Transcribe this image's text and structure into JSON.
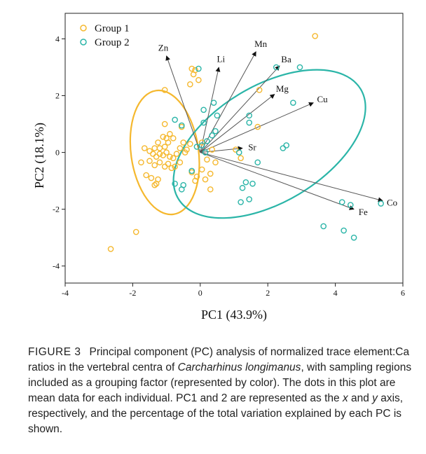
{
  "chart_data": {
    "type": "scatter",
    "xlabel": "PC1 (43.9%)",
    "ylabel": "PC2 (18.1%)",
    "xlim": [
      -4,
      6
    ],
    "ylim": [
      -4.6,
      4.9
    ],
    "x_ticks": [
      "-4",
      "-2",
      "0",
      "2",
      "4",
      "6"
    ],
    "y_ticks": [
      "4",
      "2",
      "0",
      "-2",
      "-4"
    ],
    "legend_position": "top-left",
    "grid": false,
    "series": [
      {
        "name": "Group 1",
        "color": "#f5b82e",
        "points": [
          [
            -2.65,
            -3.4
          ],
          [
            -1.9,
            -2.8
          ],
          [
            -1.05,
            2.2
          ],
          [
            -0.15,
            2.9
          ],
          [
            -0.2,
            2.75
          ],
          [
            -0.25,
            2.95
          ],
          [
            -0.3,
            2.4
          ],
          [
            -0.05,
            2.55
          ],
          [
            0.3,
            -1.3
          ],
          [
            -1.05,
            1.0
          ],
          [
            -0.55,
            0.9
          ],
          [
            -1.0,
            0.5
          ],
          [
            -0.9,
            0.65
          ],
          [
            -1.1,
            0.55
          ],
          [
            -1.25,
            0.35
          ],
          [
            -1.35,
            0.15
          ],
          [
            -1.2,
            0.15
          ],
          [
            -1.05,
            0.2
          ],
          [
            -0.95,
            0.35
          ],
          [
            -0.8,
            0.5
          ],
          [
            -0.6,
            0.15
          ],
          [
            -0.5,
            0.35
          ],
          [
            -0.4,
            0.1
          ],
          [
            -0.3,
            0.3
          ],
          [
            -1.65,
            0.15
          ],
          [
            -1.5,
            0.05
          ],
          [
            -1.4,
            -0.05
          ],
          [
            -1.3,
            -0.15
          ],
          [
            -1.2,
            -0.05
          ],
          [
            -1.1,
            -0.1
          ],
          [
            -1.0,
            0.0
          ],
          [
            -0.9,
            -0.15
          ],
          [
            -0.8,
            -0.2
          ],
          [
            -0.7,
            -0.05
          ],
          [
            -0.6,
            -0.35
          ],
          [
            -1.75,
            -0.35
          ],
          [
            -1.5,
            -0.3
          ],
          [
            -1.35,
            -0.45
          ],
          [
            -1.2,
            -0.35
          ],
          [
            -1.05,
            -0.5
          ],
          [
            -0.95,
            -0.4
          ],
          [
            -0.85,
            -0.55
          ],
          [
            -0.75,
            -0.5
          ],
          [
            -1.6,
            -0.8
          ],
          [
            -1.45,
            -0.9
          ],
          [
            -1.3,
            -1.1
          ],
          [
            -1.25,
            -0.95
          ],
          [
            -1.35,
            -1.15
          ],
          [
            -0.25,
            -0.7
          ],
          [
            -0.1,
            -0.85
          ],
          [
            0.05,
            -0.6
          ],
          [
            0.15,
            -0.95
          ],
          [
            0.3,
            -0.75
          ],
          [
            0.45,
            -0.35
          ],
          [
            0.05,
            0.35
          ],
          [
            0.35,
            0.1
          ],
          [
            -0.45,
            0.0
          ],
          [
            0.2,
            -0.25
          ],
          [
            -0.15,
            -1.0
          ],
          [
            1.2,
            -0.2
          ],
          [
            1.05,
            0.1
          ],
          [
            1.7,
            0.9
          ],
          [
            1.75,
            2.2
          ],
          [
            3.4,
            4.1
          ]
        ]
      },
      {
        "name": "Group 2",
        "color": "#2bb5a8",
        "points": [
          [
            -0.05,
            2.95
          ],
          [
            2.25,
            3.0
          ],
          [
            2.95,
            3.0
          ],
          [
            0.4,
            1.75
          ],
          [
            0.1,
            1.5
          ],
          [
            0.5,
            1.3
          ],
          [
            0.1,
            1.05
          ],
          [
            -0.75,
            1.15
          ],
          [
            -0.55,
            0.95
          ],
          [
            0.35,
            0.6
          ],
          [
            0.45,
            0.75
          ],
          [
            0.2,
            0.4
          ],
          [
            0.05,
            0.25
          ],
          [
            -0.1,
            0.2
          ],
          [
            0.15,
            0.0
          ],
          [
            1.45,
            1.3
          ],
          [
            1.45,
            1.05
          ],
          [
            2.75,
            1.75
          ],
          [
            1.15,
            0.0
          ],
          [
            1.7,
            -0.35
          ],
          [
            -0.25,
            -0.65
          ],
          [
            -0.75,
            -1.1
          ],
          [
            -0.55,
            -1.3
          ],
          [
            -0.5,
            -1.15
          ],
          [
            1.35,
            -1.05
          ],
          [
            1.55,
            -1.1
          ],
          [
            1.25,
            -1.25
          ],
          [
            1.2,
            -1.75
          ],
          [
            1.45,
            -1.65
          ],
          [
            3.65,
            -2.6
          ],
          [
            4.25,
            -2.75
          ],
          [
            4.45,
            -1.85
          ],
          [
            4.2,
            -1.75
          ],
          [
            4.55,
            -3.0
          ],
          [
            5.35,
            -1.8
          ],
          [
            2.45,
            0.15
          ],
          [
            2.55,
            0.25
          ]
        ]
      }
    ],
    "ellipses": [
      {
        "series": "Group 1",
        "cx": -1.05,
        "cy": 0.0,
        "rx": 1.0,
        "ry": 2.2,
        "angle_deg": -8
      },
      {
        "series": "Group 2",
        "cx": 2.05,
        "cy": 0.3,
        "rx": 3.15,
        "ry": 2.05,
        "angle_deg": -31
      }
    ],
    "vectors": [
      {
        "label": "Zn",
        "x": -1.0,
        "y": 3.4
      },
      {
        "label": "Li",
        "x": 0.55,
        "y": 3.0
      },
      {
        "label": "Mn",
        "x": 1.65,
        "y": 3.55
      },
      {
        "label": "Ba",
        "x": 2.35,
        "y": 3.05
      },
      {
        "label": "Mg",
        "x": 2.2,
        "y": 2.05
      },
      {
        "label": "Cu",
        "x": 3.35,
        "y": 1.75
      },
      {
        "label": "Sr",
        "x": 1.25,
        "y": 0.15
      },
      {
        "label": "Co",
        "x": 5.4,
        "y": -1.7
      },
      {
        "label": "Fe",
        "x": 4.55,
        "y": -2.0
      }
    ]
  },
  "caption": {
    "figure_label": "FIGURE 3",
    "text_part1": "Principal component (PC) analysis of normalized trace element:Ca ratios in the vertebral centra of ",
    "text_italic1": "Carcharhinus longimanus",
    "text_part2": ", with sampling regions included as a grouping factor (represented by color). The dots in this plot are mean data for each individual. PC1 and 2 are represented as the ",
    "text_italic2": "x",
    "text_part3": " and ",
    "text_italic3": "y",
    "text_part4": " axis, respectively, and the percentage of the total variation explained by each PC is shown."
  }
}
